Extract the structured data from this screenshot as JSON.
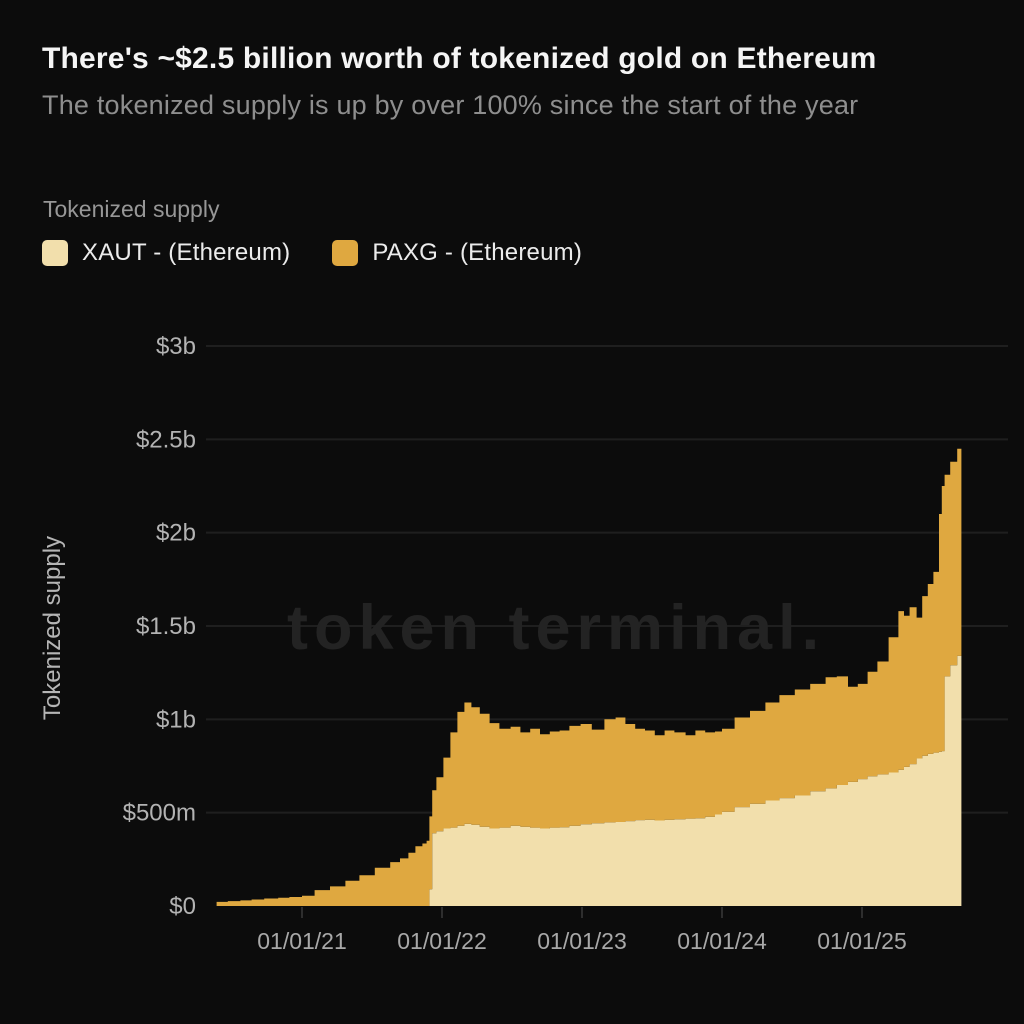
{
  "header": {
    "title": "There's ~$2.5 billion worth of tokenized gold on Ethereum",
    "subtitle": "The tokenized supply is up by over 100% since the start of the year"
  },
  "legend": {
    "label": "Tokenized supply",
    "items": [
      {
        "label": "XAUT - (Ethereum)",
        "color": "#f2dfac"
      },
      {
        "label": "PAXG - (Ethereum)",
        "color": "#dfa840"
      }
    ]
  },
  "watermark": "token terminal.",
  "colors": {
    "background": "#0c0c0c",
    "gridline": "#1f1f1f",
    "tick": "#2e2e2e",
    "axis_label": "#b3b3b3",
    "x_label": "#a8a8a8",
    "watermark": "#232323",
    "xaut": "#f2dfac",
    "paxg": "#dfa840"
  },
  "chart_data": {
    "type": "area",
    "stacked": true,
    "title": "Tokenized supply",
    "xlabel": "",
    "ylabel": "Tokenized supply",
    "value_unit": "USD millions",
    "x_unit": "decimal_year",
    "ylim": [
      0,
      3000
    ],
    "xlim": [
      2020.31,
      2026.04
    ],
    "grid": "horizontal",
    "legend_position": "top-left",
    "y_ticks": [
      {
        "label": "$0",
        "value": 0
      },
      {
        "label": "$500m",
        "value": 500
      },
      {
        "label": "$1b",
        "value": 1000
      },
      {
        "label": "$1.5b",
        "value": 1500
      },
      {
        "label": "$2b",
        "value": 2000
      },
      {
        "label": "$2.5b",
        "value": 2500
      },
      {
        "label": "$3b",
        "value": 3000
      }
    ],
    "x_ticks": [
      {
        "label": "01/01/21",
        "value": 2021
      },
      {
        "label": "01/01/22",
        "value": 2022
      },
      {
        "label": "01/01/23",
        "value": 2023
      },
      {
        "label": "01/01/24",
        "value": 2024
      },
      {
        "label": "01/01/25",
        "value": 2025
      }
    ],
    "x": [
      2020.39,
      2020.47,
      2020.56,
      2020.64,
      2020.73,
      2020.83,
      2020.91,
      2021.0,
      2021.09,
      2021.2,
      2021.31,
      2021.41,
      2021.52,
      2021.63,
      2021.7,
      2021.76,
      2021.81,
      2021.86,
      2021.89,
      2021.91,
      2021.93,
      2021.96,
      2022.01,
      2022.06,
      2022.11,
      2022.16,
      2022.21,
      2022.27,
      2022.34,
      2022.41,
      2022.49,
      2022.56,
      2022.63,
      2022.7,
      2022.77,
      2022.84,
      2022.91,
      2022.99,
      2023.07,
      2023.16,
      2023.24,
      2023.31,
      2023.38,
      2023.45,
      2023.52,
      2023.59,
      2023.66,
      2023.74,
      2023.81,
      2023.88,
      2023.95,
      2024.0,
      2024.09,
      2024.2,
      2024.31,
      2024.41,
      2024.52,
      2024.63,
      2024.74,
      2024.82,
      2024.9,
      2024.97,
      2025.04,
      2025.11,
      2025.19,
      2025.26,
      2025.3,
      2025.34,
      2025.39,
      2025.43,
      2025.47,
      2025.51,
      2025.55,
      2025.57,
      2025.59,
      2025.63,
      2025.68,
      2025.71
    ],
    "series": [
      {
        "name": "XAUT - (Ethereum)",
        "color": "#f2dfac",
        "values": [
          0,
          0,
          0,
          0,
          0,
          0,
          0,
          0,
          0,
          0,
          0,
          0,
          0,
          0,
          0,
          0,
          0,
          0,
          0,
          90,
          390,
          400,
          415,
          420,
          430,
          440,
          435,
          425,
          415,
          420,
          430,
          425,
          420,
          415,
          420,
          422,
          430,
          438,
          443,
          448,
          450,
          455,
          460,
          462,
          458,
          462,
          465,
          468,
          470,
          478,
          490,
          505,
          530,
          548,
          565,
          578,
          592,
          615,
          630,
          648,
          665,
          680,
          695,
          705,
          715,
          730,
          745,
          760,
          790,
          805,
          815,
          822,
          826,
          830,
          1230,
          1290,
          1340,
          1385
        ]
      },
      {
        "name": "PAXG - (Ethereum)",
        "color": "#dfa840",
        "values": [
          22,
          26,
          30,
          35,
          40,
          44,
          48,
          55,
          85,
          105,
          135,
          165,
          205,
          235,
          255,
          285,
          320,
          335,
          350,
          390,
          230,
          290,
          380,
          510,
          610,
          650,
          630,
          605,
          565,
          530,
          530,
          505,
          530,
          505,
          515,
          518,
          535,
          537,
          502,
          552,
          560,
          520,
          490,
          478,
          457,
          478,
          465,
          447,
          470,
          452,
          445,
          445,
          480,
          497,
          525,
          552,
          568,
          575,
          595,
          582,
          510,
          510,
          560,
          605,
          725,
          850,
          810,
          840,
          755,
          855,
          910,
          968,
          1274,
          1420,
          1080,
          1090,
          1110,
          1135
        ]
      }
    ]
  }
}
